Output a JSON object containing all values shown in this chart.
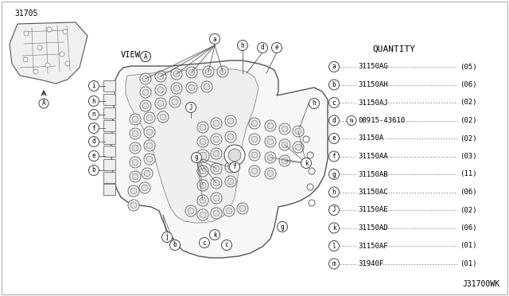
{
  "background_color": "#ffffff",
  "part_number_label": "31705",
  "diagram_code": "J31700WK",
  "quantity_title": "QUANTITY",
  "parts": [
    {
      "label": "a",
      "part_number": "31150AG",
      "quantity": "05"
    },
    {
      "label": "b",
      "part_number": "31150AH",
      "quantity": "06"
    },
    {
      "label": "c",
      "part_number": "31150AJ",
      "quantity": "02"
    },
    {
      "label": "d",
      "part_number": "08915-43610",
      "quantity": "02",
      "extra": "N"
    },
    {
      "label": "e",
      "part_number": "31150A",
      "quantity": "02"
    },
    {
      "label": "f",
      "part_number": "31150AA",
      "quantity": "03"
    },
    {
      "label": "g",
      "part_number": "31150AB",
      "quantity": "11"
    },
    {
      "label": "h",
      "part_number": "31150AC",
      "quantity": "06"
    },
    {
      "label": "J",
      "part_number": "31150AE",
      "quantity": "02"
    },
    {
      "label": "k",
      "part_number": "31150AD",
      "quantity": "06"
    },
    {
      "label": "l",
      "part_number": "31150AF",
      "quantity": "01"
    },
    {
      "label": "m",
      "part_number": "31940F",
      "quantity": "01"
    }
  ]
}
